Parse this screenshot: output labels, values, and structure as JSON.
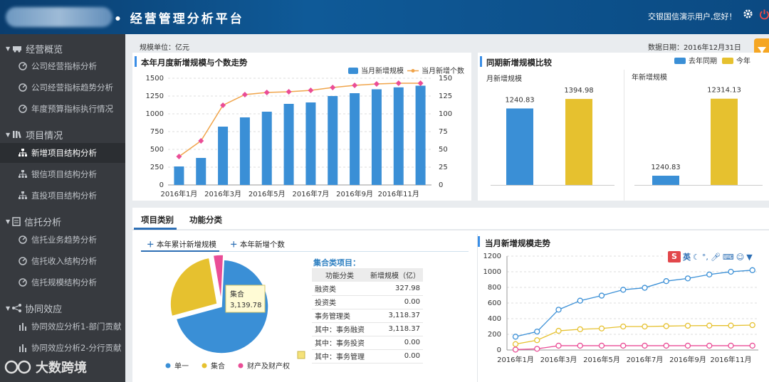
{
  "header": {
    "title": "• 经营管理分析平台",
    "user_greeting": "交银国信演示用户,您好！"
  },
  "sidebar": {
    "groups": [
      {
        "label": "经营概览",
        "items": [
          "公司经营指标分析",
          "公司经营指标趋势分析",
          "年度预算指标执行情况"
        ]
      },
      {
        "label": "项目情况",
        "items": [
          "新增项目结构分析",
          "银信项目结构分析",
          "直投项目结构分析"
        ]
      },
      {
        "label": "信托分析",
        "items": [
          "信托业务趋势分析",
          "信托收入结构分析",
          "信托规模结构分析"
        ]
      },
      {
        "label": "协同效应",
        "items": [
          "协同效应分析1-部门贡献",
          "协同效应分析2-分行贡献"
        ]
      }
    ],
    "active_item": "新增项目结构分析"
  },
  "watermark": "大数跨境",
  "main": {
    "unit_label": "规模单位：亿元",
    "data_date": "数据日期：2016年12月31日"
  },
  "panel_trend": {
    "title": "本年月度新增规模与个数走势"
  },
  "panel_compare": {
    "title": "同期新增规模比较",
    "sub_month": "月新增规模",
    "sub_year": "年新增规模"
  },
  "bottom": {
    "tabs": [
      "项目类别",
      "功能分类"
    ],
    "subtabs": [
      "本年累计新增规模",
      "本年新增个数"
    ],
    "table_title": "集合类项目：",
    "table_headers": [
      "功能分类",
      "新增规模（亿）"
    ],
    "table_rows": [
      [
        "融资类",
        "327.98"
      ],
      [
        "投资类",
        "0.00"
      ],
      [
        "事务管理类",
        "3,118.37"
      ],
      [
        "其中：事务融资",
        "3,118.37"
      ],
      [
        "其中：事务投资",
        "0.00"
      ],
      [
        "其中：事务管理",
        "0.00"
      ]
    ],
    "trend_title": "当月新增规模走势",
    "ime_text": "英"
  },
  "colors": {
    "blue": "#3a8fd6",
    "yellow": "#e6c12f",
    "pink": "#ea4d96",
    "line_blue": "#3a8fd6"
  },
  "chart_data": [
    {
      "type": "bar",
      "title": "本年月度新增规模与个数走势",
      "categories": [
        "2016年1月",
        "2016年2月",
        "2016年3月",
        "2016年4月",
        "2016年5月",
        "2016年6月",
        "2016年7月",
        "2016年8月",
        "2016年9月",
        "2016年10月",
        "2016年11月",
        "2016年12月"
      ],
      "tick_labels": [
        "2016年1月",
        "2016年3月",
        "2016年5月",
        "2016年7月",
        "2016年9月",
        "2016年11月"
      ],
      "series": [
        {
          "name": "当月新增规模",
          "kind": "bar",
          "axis": "left",
          "values": [
            260,
            380,
            820,
            950,
            1030,
            1140,
            1160,
            1250,
            1290,
            1345,
            1372,
            1395
          ]
        },
        {
          "name": "当月新增个数",
          "kind": "line",
          "axis": "right",
          "values": [
            40,
            62,
            112,
            127,
            130,
            131,
            133,
            137,
            140,
            142,
            143,
            143
          ]
        }
      ],
      "ylim_left": [
        0,
        1500
      ],
      "yticks_left": [
        0,
        250,
        500,
        750,
        1000,
        1250,
        1500
      ],
      "ylim_right": [
        0,
        150
      ],
      "yticks_right": [
        0,
        25,
        50,
        75,
        100,
        125,
        150
      ],
      "legend": "top-right",
      "grid": true
    },
    {
      "type": "bar",
      "title": "同期新增规模比较",
      "legend": [
        "去年同期",
        "今年"
      ],
      "groups": [
        {
          "name": "月新增规模",
          "values": [
            1240.83,
            1394.98
          ],
          "labels": [
            "1240.83",
            "1394.98"
          ]
        },
        {
          "name": "年新增规模",
          "values": [
            1240.83,
            12314.13
          ],
          "labels": [
            "1240.83",
            "12314.13"
          ]
        }
      ]
    },
    {
      "type": "pie",
      "slices": [
        {
          "name": "单一",
          "value": 8300
        },
        {
          "name": "集合",
          "value": 3139.78,
          "label": "3,139.78"
        },
        {
          "name": "财产及财产权",
          "value": 420
        }
      ],
      "tooltip": {
        "title": "集合",
        "value": "3,139.78"
      },
      "legend": "bottom"
    },
    {
      "type": "line",
      "title": "当月新增规模走势",
      "categories": [
        "2016年1月",
        "2016年2月",
        "2016年3月",
        "2016年4月",
        "2016年5月",
        "2016年6月",
        "2016年7月",
        "2016年8月",
        "2016年9月",
        "2016年10月",
        "2016年11月",
        "2016年12月"
      ],
      "tick_labels": [
        "2016年1月",
        "2016年3月",
        "2016年5月",
        "2016年7月",
        "2016年9月",
        "2016年11月"
      ],
      "series": [
        {
          "values": [
            170,
            235,
            515,
            630,
            695,
            770,
            795,
            880,
            915,
            965,
            1000,
            1020
          ],
          "color": "#3a8fd6"
        },
        {
          "values": [
            75,
            125,
            245,
            265,
            275,
            300,
            300,
            305,
            310,
            312,
            312,
            318
          ],
          "color": "#e6c12f"
        },
        {
          "values": [
            5,
            15,
            55,
            55,
            55,
            55,
            55,
            55,
            55,
            55,
            55,
            55
          ],
          "color": "#ea4d96"
        }
      ],
      "ylim": [
        0,
        1200
      ],
      "yticks": [
        0,
        200,
        400,
        600,
        800,
        1000,
        1200
      ],
      "grid": true
    }
  ]
}
